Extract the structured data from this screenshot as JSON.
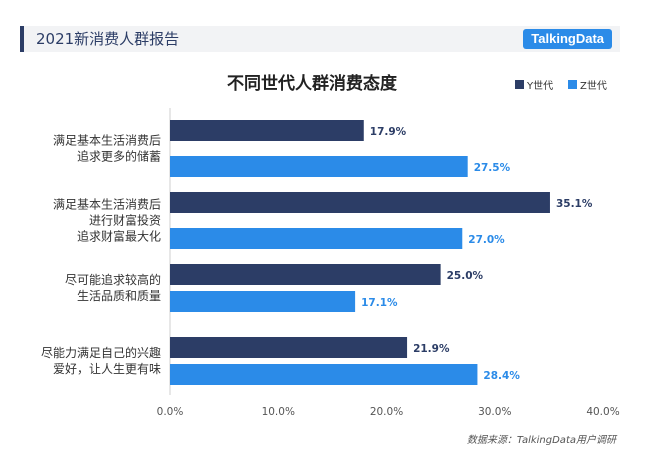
{
  "header": {
    "title": "2021新消费人群报告",
    "logo": "TalkingData"
  },
  "source": "数据来源：TalkingData用户调研",
  "chart_data": {
    "type": "bar",
    "orientation": "horizontal",
    "title": "不同世代人群消费态度",
    "categories": [
      [
        "满足基本生活消费后",
        "追求更多的储蓄"
      ],
      [
        "满足基本生活消费后",
        "进行财富投资",
        "追求财富最大化"
      ],
      [
        "尽可能追求较高的",
        "生活品质和质量"
      ],
      [
        "尽能力满足自己的兴趣",
        "爱好，让人生更有味"
      ]
    ],
    "series": [
      {
        "name": "Y世代",
        "color": "#2c3d66",
        "values": [
          17.9,
          35.1,
          25.0,
          21.9
        ],
        "labels": [
          "17.9%",
          "35.1%",
          "25.0%",
          "21.9%"
        ]
      },
      {
        "name": "Z世代",
        "color": "#2b8be8",
        "values": [
          27.5,
          27.0,
          17.1,
          28.4
        ],
        "labels": [
          "27.5%",
          "27.0%",
          "17.1%",
          "28.4%"
        ]
      }
    ],
    "xlim": [
      0,
      40
    ],
    "xticks": [
      "0.0%",
      "10.0%",
      "20.0%",
      "30.0%",
      "40.0%"
    ],
    "legend": "top-right",
    "grid": false
  }
}
